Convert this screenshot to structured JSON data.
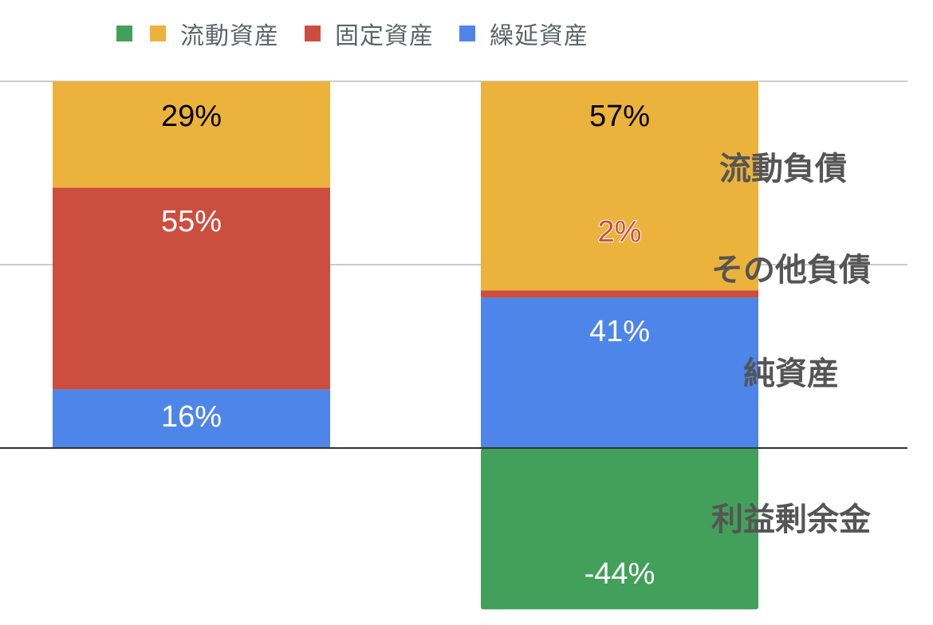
{
  "chart_data": {
    "type": "bar",
    "stacked": true,
    "colors": {
      "利益剰余金": "#43a05a",
      "流動資産": "#ebb33c",
      "固定資産": "#cc4e3e",
      "繰延資産": "#4e85e8"
    },
    "legend": {
      "position": "top",
      "entries": [
        {
          "label": "",
          "color": "#43a05a"
        },
        {
          "label": "流動資産",
          "color": "#ebb33c"
        },
        {
          "label": "固定資産",
          "color": "#cc4e3e"
        },
        {
          "label": "繰延資産",
          "color": "#4e85e8"
        }
      ]
    },
    "ylim": [
      -44,
      100
    ],
    "grid": true,
    "bars": [
      {
        "segments": [
          {
            "value": 16,
            "label": "16%",
            "color": "#4e85e8",
            "label_color": "#ffffff"
          },
          {
            "value": 55,
            "label": "55%",
            "color": "#cc4e3e",
            "label_color": "#ffffff"
          },
          {
            "value": 29,
            "label": "29%",
            "color": "#ebb33c",
            "label_color": "#000000"
          }
        ],
        "negative_segments": []
      },
      {
        "segments": [
          {
            "value": 41,
            "label": "41%",
            "color": "#4e85e8",
            "label_color": "#ffffff"
          },
          {
            "value": 2,
            "label": "2%",
            "color": "#cc4e3e",
            "label_color": "#cc4e3e"
          },
          {
            "value": 57,
            "label": "57%",
            "color": "#ebb33c",
            "label_color": "#000000"
          }
        ],
        "negative_segments": [
          {
            "value": -44,
            "label": "-44%",
            "color": "#43a05a",
            "label_color": "#ffffff"
          }
        ]
      }
    ],
    "annotations": [
      "流動負債",
      "その他負債",
      "純資産",
      "利益剰余金"
    ]
  }
}
